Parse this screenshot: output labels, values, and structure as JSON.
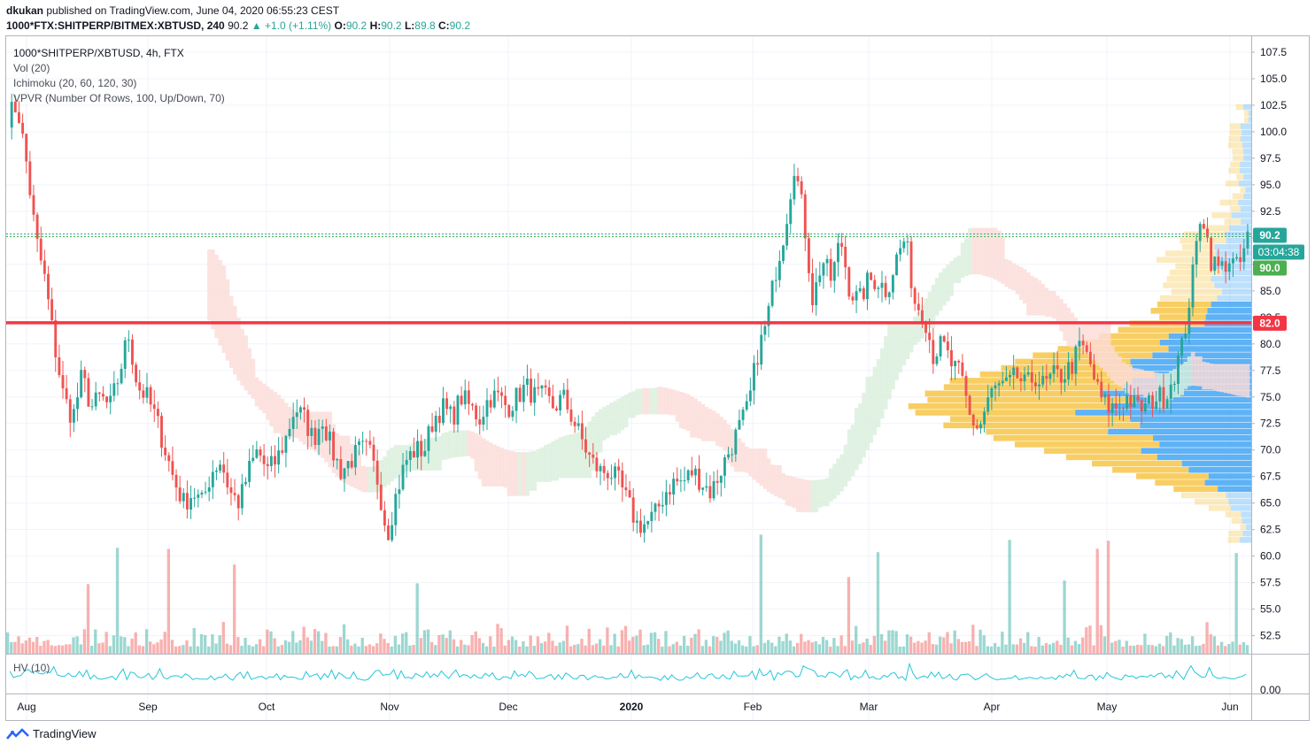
{
  "header": {
    "author": "dkukan",
    "published_text": "published on TradingView.com, June 04, 2020 06:55:23 CEST",
    "symbol_line": "1000*FTX:SHITPERP/BITMEX:XBTUSD, 240",
    "last_price": "90.2",
    "change": "+1.0 (+1.11%)",
    "open_label": "O:",
    "open": "90.2",
    "high_label": "H:",
    "high": "90.2",
    "low_label": "L:",
    "low": "89.8",
    "close_label": "C:",
    "close": "90.2"
  },
  "legend": {
    "title": "1000*SHITPERP/XBTUSD, 4h, FTX",
    "vol": "Vol (20)",
    "ichimoku": "Ichimoku (20, 60, 120, 30)",
    "vpvr": "VPVR (Number Of Rows, 100, Up/Down, 70)"
  },
  "hv": {
    "label": "HV (10)",
    "tick": "0.00"
  },
  "brand": {
    "name": "TradingView"
  },
  "price_tags": {
    "last": "90.2",
    "countdown": "03:04:38",
    "kijun": "90.0",
    "level": "82.0"
  },
  "colors": {
    "up": "#26a69a",
    "down": "#ef5350",
    "vpvr_up": "#42a5f5",
    "vpvr_down": "#f7c548",
    "level": "#f23645",
    "hv_line": "#26c6da",
    "kijun_tag": "#4caf50"
  },
  "chart_data": {
    "type": "candlestick",
    "x_ticks": [
      "Aug",
      "Sep",
      "Oct",
      "Nov",
      "Dec",
      "2020",
      "Feb",
      "Mar",
      "Apr",
      "May",
      "Jun"
    ],
    "y_ticks": [
      "107.5",
      "105.0",
      "102.5",
      "100.0",
      "97.5",
      "95.0",
      "92.5",
      "90.0",
      "87.5",
      "85.0",
      "82.5",
      "80.0",
      "77.5",
      "75.0",
      "72.5",
      "70.0",
      "67.5",
      "65.0",
      "62.5",
      "60.0",
      "57.5",
      "55.0",
      "52.5"
    ],
    "ylim": [
      50.8,
      109.0
    ],
    "horizontal_level": 82.0,
    "last_price": 90.2,
    "price_path": [
      [
        0,
        101.5
      ],
      [
        2,
        102.5
      ],
      [
        4,
        97
      ],
      [
        6,
        90
      ],
      [
        8,
        86
      ],
      [
        10,
        80
      ],
      [
        12,
        75
      ],
      [
        14,
        73
      ],
      [
        16,
        77
      ],
      [
        18,
        74
      ],
      [
        20,
        75
      ],
      [
        22,
        74
      ],
      [
        24,
        77
      ],
      [
        26,
        81
      ],
      [
        28,
        76
      ],
      [
        30,
        75
      ],
      [
        32,
        73
      ],
      [
        34,
        70
      ],
      [
        36,
        67
      ],
      [
        38,
        65
      ],
      [
        40,
        66
      ],
      [
        42,
        65
      ],
      [
        44,
        68
      ],
      [
        46,
        69
      ],
      [
        48,
        66
      ],
      [
        50,
        65
      ],
      [
        52,
        68
      ],
      [
        54,
        70
      ],
      [
        56,
        68
      ],
      [
        58,
        69
      ],
      [
        60,
        71
      ],
      [
        62,
        74
      ],
      [
        64,
        73
      ],
      [
        66,
        71
      ],
      [
        68,
        73
      ],
      [
        70,
        70
      ],
      [
        72,
        68
      ],
      [
        74,
        69
      ],
      [
        76,
        70
      ],
      [
        78,
        70
      ],
      [
        80,
        67
      ],
      [
        82,
        62
      ],
      [
        84,
        66
      ],
      [
        86,
        69
      ],
      [
        88,
        70
      ],
      [
        90,
        70
      ],
      [
        92,
        73
      ],
      [
        94,
        74
      ],
      [
        96,
        73
      ],
      [
        98,
        75
      ],
      [
        100,
        74
      ],
      [
        102,
        73
      ],
      [
        104,
        75
      ],
      [
        106,
        75
      ],
      [
        108,
        74
      ],
      [
        110,
        75
      ],
      [
        112,
        76
      ],
      [
        114,
        75
      ],
      [
        116,
        75
      ],
      [
        118,
        74
      ],
      [
        120,
        75
      ],
      [
        122,
        73
      ],
      [
        124,
        71
      ],
      [
        126,
        69
      ],
      [
        128,
        68
      ],
      [
        130,
        68
      ],
      [
        132,
        67
      ],
      [
        134,
        65
      ],
      [
        136,
        63
      ],
      [
        138,
        63
      ],
      [
        140,
        64
      ],
      [
        142,
        66
      ],
      [
        144,
        67
      ],
      [
        146,
        67
      ],
      [
        148,
        68
      ],
      [
        150,
        67
      ],
      [
        152,
        66
      ],
      [
        154,
        68
      ],
      [
        156,
        70
      ],
      [
        158,
        72
      ],
      [
        160,
        74
      ],
      [
        162,
        79
      ],
      [
        164,
        82
      ],
      [
        166,
        87
      ],
      [
        168,
        91
      ],
      [
        170,
        97
      ],
      [
        172,
        92
      ],
      [
        174,
        84
      ],
      [
        176,
        88
      ],
      [
        178,
        86
      ],
      [
        180,
        90
      ],
      [
        182,
        85
      ],
      [
        184,
        84
      ],
      [
        186,
        86
      ],
      [
        188,
        86
      ],
      [
        190,
        85
      ],
      [
        192,
        88
      ],
      [
        194,
        90
      ],
      [
        196,
        84
      ],
      [
        198,
        83
      ],
      [
        200,
        79
      ],
      [
        202,
        80
      ],
      [
        204,
        78
      ],
      [
        206,
        77
      ],
      [
        208,
        73
      ],
      [
        210,
        72
      ],
      [
        212,
        75
      ],
      [
        214,
        76
      ],
      [
        216,
        76
      ],
      [
        218,
        77
      ],
      [
        220,
        76
      ],
      [
        222,
        77
      ],
      [
        224,
        76
      ],
      [
        226,
        77
      ],
      [
        228,
        77
      ],
      [
        230,
        78
      ],
      [
        232,
        80
      ],
      [
        234,
        78
      ],
      [
        236,
        75
      ],
      [
        238,
        74
      ],
      [
        240,
        74
      ],
      [
        242,
        75
      ],
      [
        244,
        74
      ],
      [
        246,
        74
      ],
      [
        248,
        75
      ],
      [
        250,
        75
      ],
      [
        252,
        77
      ],
      [
        254,
        80
      ],
      [
        256,
        86
      ],
      [
        258,
        93
      ],
      [
        260,
        88
      ],
      [
        262,
        87
      ],
      [
        264,
        88
      ],
      [
        266,
        87
      ],
      [
        268,
        90
      ]
    ]
  }
}
